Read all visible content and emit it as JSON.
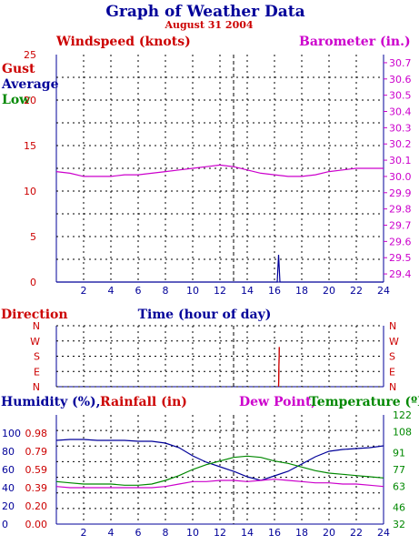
{
  "title": "Graph of Weather Data",
  "subtitle": "August 31 2004",
  "colors": {
    "windspeed": "#cc0000",
    "barometer": "#cc00cc",
    "gust": "#cc0000",
    "average": "#000099",
    "low": "#008800",
    "direction": "#cc0000",
    "humidity": "#000099",
    "rainfall": "#cc0000",
    "dewpoint": "#cc00cc",
    "temperature": "#008800",
    "time": "#000099"
  },
  "chart_data": [
    {
      "type": "line",
      "name": "wind-barometer",
      "labels": {
        "windspeed": "Windspeed (knots)",
        "barometer": "Barometer (in.)",
        "xlabel": "Time (hour of day)"
      },
      "legend": [
        "Gust",
        "Average",
        "Low"
      ],
      "xlim": [
        0,
        24
      ],
      "x_ticks": [
        2,
        4,
        6,
        8,
        10,
        12,
        14,
        16,
        18,
        20,
        22,
        24
      ],
      "y_left": {
        "ylim": [
          0,
          25
        ],
        "ticks": [
          0,
          5,
          10,
          15,
          20,
          25
        ]
      },
      "y_right": {
        "ylim": [
          29.35,
          30.75
        ],
        "ticks": [
          "29.4",
          "29.5",
          "29.6",
          "29.7",
          "29.8",
          "29.9",
          "30.0",
          "30.1",
          "30.2",
          "30.3",
          "30.4",
          "30.5",
          "30.6",
          "30.7"
        ]
      },
      "series": [
        {
          "name": "Barometer (in.)",
          "axis": "right",
          "points": [
            [
              0,
              30.03
            ],
            [
              1,
              30.02
            ],
            [
              2,
              30.0
            ],
            [
              3,
              30.0
            ],
            [
              4,
              30.0
            ],
            [
              5,
              30.01
            ],
            [
              6,
              30.01
            ],
            [
              7,
              30.02
            ],
            [
              8,
              30.03
            ],
            [
              9,
              30.04
            ],
            [
              10,
              30.05
            ],
            [
              11,
              30.06
            ],
            [
              12,
              30.07
            ],
            [
              13,
              30.06
            ],
            [
              14,
              30.04
            ],
            [
              15,
              30.02
            ],
            [
              16,
              30.01
            ],
            [
              17,
              30.0
            ],
            [
              18,
              30.0
            ],
            [
              19,
              30.01
            ],
            [
              20,
              30.03
            ],
            [
              21,
              30.04
            ],
            [
              22,
              30.05
            ],
            [
              23,
              30.05
            ],
            [
              24,
              30.05
            ]
          ]
        },
        {
          "name": "Gust",
          "axis": "left",
          "points": [
            [
              0,
              0
            ],
            [
              16.2,
              0
            ],
            [
              16.3,
              3
            ],
            [
              16.4,
              0
            ],
            [
              24,
              0
            ]
          ]
        }
      ],
      "vline_x": 13
    },
    {
      "type": "scatter",
      "name": "direction",
      "labels": {
        "title": "Direction"
      },
      "xlim": [
        0,
        24
      ],
      "categories": [
        "N",
        "W",
        "S",
        "E",
        "N"
      ],
      "series": [
        {
          "name": "Direction",
          "points": [
            [
              16.3,
              0
            ],
            [
              16.35,
              2.6
            ]
          ]
        }
      ],
      "vline_x": 13
    },
    {
      "type": "line",
      "name": "humidity-temperature",
      "labels": {
        "humidity": "Humidity (%),",
        "rainfall": "Rainfall (in)",
        "dewpoint": "Dew Point,",
        "temperature": "Temperature (ºF)"
      },
      "xlim": [
        0,
        24
      ],
      "x_ticks": [
        2,
        4,
        6,
        8,
        10,
        12,
        14,
        16,
        18,
        20,
        22,
        24
      ],
      "y_humidity_ticks": [
        "0",
        "20",
        "40",
        "60",
        "80",
        "100"
      ],
      "y_rain_ticks": [
        "0.00",
        "0.20",
        "0.39",
        "0.59",
        "0.79",
        "0.98"
      ],
      "y_temp": {
        "ylim": [
          32,
          122
        ],
        "ticks": [
          "32",
          "46",
          "63",
          "77",
          "91",
          "108",
          "122"
        ]
      },
      "humidity_range": [
        0,
        120
      ],
      "series": [
        {
          "name": "Humidity (%)",
          "axis": "humidity",
          "points": [
            [
              0,
              92
            ],
            [
              1,
              93
            ],
            [
              2,
              93
            ],
            [
              3,
              92
            ],
            [
              4,
              92
            ],
            [
              5,
              92
            ],
            [
              6,
              91
            ],
            [
              7,
              91
            ],
            [
              8,
              89
            ],
            [
              9,
              84
            ],
            [
              10,
              75
            ],
            [
              11,
              68
            ],
            [
              12,
              63
            ],
            [
              13,
              58
            ],
            [
              14,
              52
            ],
            [
              15,
              48
            ],
            [
              16,
              53
            ],
            [
              17,
              58
            ],
            [
              18,
              66
            ],
            [
              19,
              74
            ],
            [
              20,
              80
            ],
            [
              21,
              82
            ],
            [
              22,
              83
            ],
            [
              23,
              84
            ],
            [
              24,
              86
            ]
          ]
        },
        {
          "name": "Temperature (ºF)",
          "axis": "temp",
          "points": [
            [
              0,
              67
            ],
            [
              1,
              66
            ],
            [
              2,
              65
            ],
            [
              3,
              65
            ],
            [
              4,
              65
            ],
            [
              5,
              64
            ],
            [
              6,
              64
            ],
            [
              7,
              65
            ],
            [
              8,
              68
            ],
            [
              9,
              72
            ],
            [
              10,
              77
            ],
            [
              11,
              81
            ],
            [
              12,
              84
            ],
            [
              13,
              87
            ],
            [
              14,
              88
            ],
            [
              15,
              87
            ],
            [
              16,
              84
            ],
            [
              17,
              82
            ],
            [
              18,
              79
            ],
            [
              19,
              76
            ],
            [
              20,
              74
            ],
            [
              21,
              73
            ],
            [
              22,
              72
            ],
            [
              23,
              71
            ],
            [
              24,
              70
            ]
          ]
        },
        {
          "name": "Dew Point",
          "axis": "temp",
          "points": [
            [
              0,
              63
            ],
            [
              1,
              62
            ],
            [
              2,
              62
            ],
            [
              3,
              62
            ],
            [
              4,
              62
            ],
            [
              5,
              62
            ],
            [
              6,
              62
            ],
            [
              7,
              62
            ],
            [
              8,
              63
            ],
            [
              9,
              65
            ],
            [
              10,
              67
            ],
            [
              11,
              67
            ],
            [
              12,
              68
            ],
            [
              13,
              68
            ],
            [
              14,
              67
            ],
            [
              15,
              68
            ],
            [
              16,
              69
            ],
            [
              17,
              68
            ],
            [
              18,
              67
            ],
            [
              19,
              66
            ],
            [
              20,
              66
            ],
            [
              21,
              65
            ],
            [
              22,
              65
            ],
            [
              23,
              64
            ],
            [
              24,
              63
            ]
          ]
        }
      ],
      "vline_x": 13
    }
  ]
}
